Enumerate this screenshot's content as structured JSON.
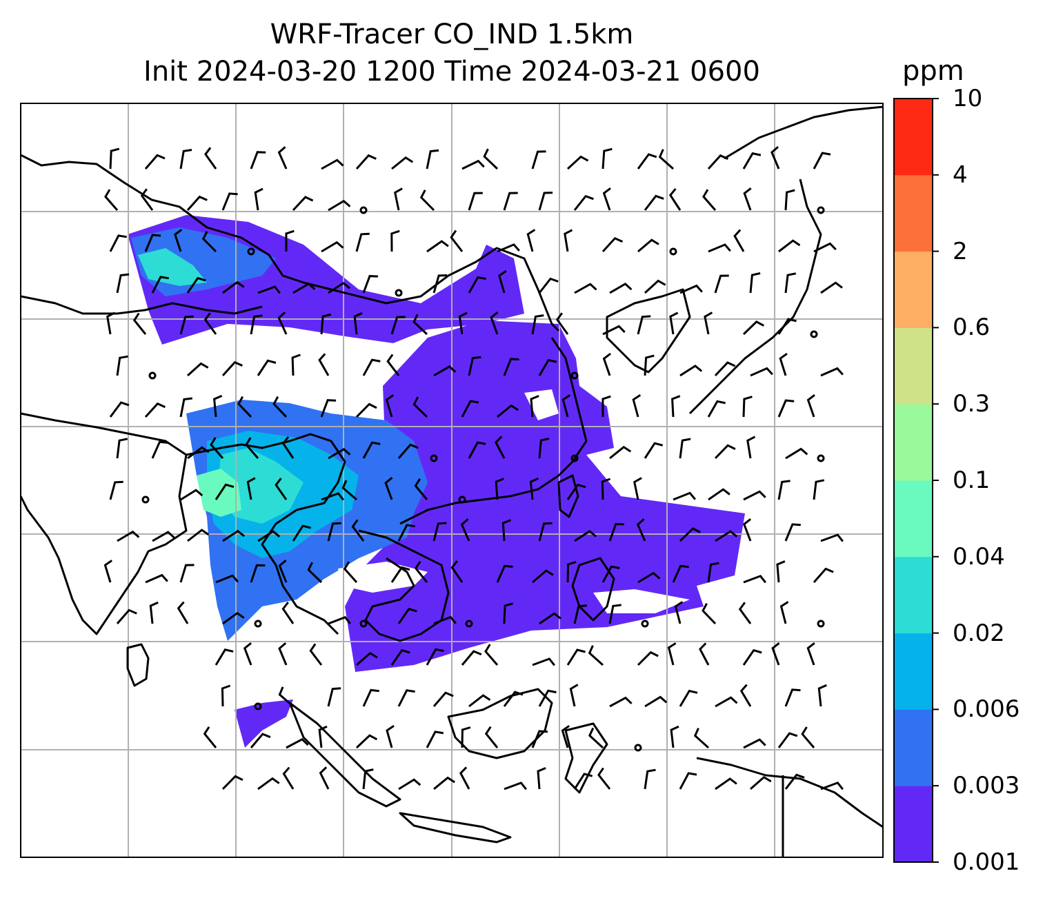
{
  "title": {
    "line1": "WRF-Tracer CO_IND 1.5km",
    "line2": "Init 2024-03-20 1200 Time 2024-03-21 0600"
  },
  "colorbar": {
    "unit": "ppm",
    "levels": [
      "0.001",
      "0.003",
      "0.006",
      "0.02",
      "0.04",
      "0.1",
      "0.3",
      "0.6",
      "2",
      "4",
      "10"
    ],
    "colors": [
      "#6229f6",
      "#3072f2",
      "#05b3ea",
      "#2ddcd4",
      "#6afac0",
      "#9af99a",
      "#cfe288",
      "#feaf63",
      "#fd7039",
      "#ff2a13"
    ]
  },
  "map": {
    "coastline_color": "#000000",
    "gridline_color": "#b0b0b0",
    "background": "#ffffff"
  }
}
